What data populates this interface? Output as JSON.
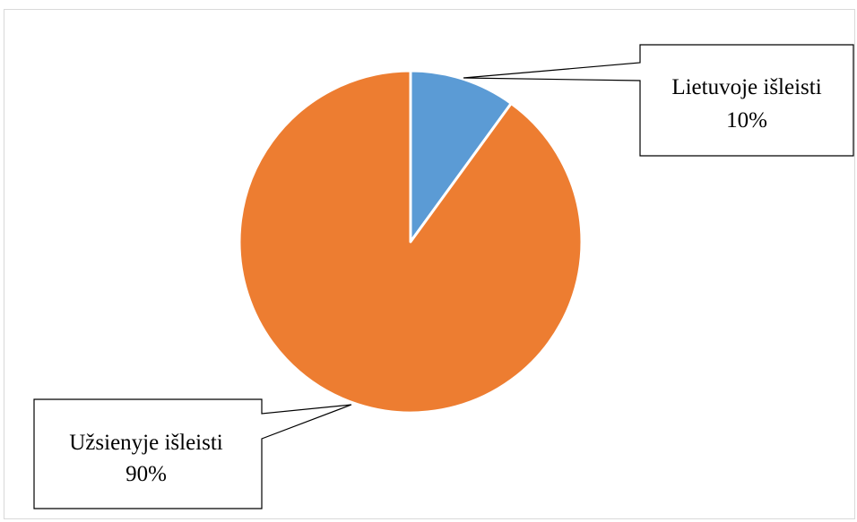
{
  "chart_data": {
    "type": "pie",
    "title": "",
    "slices": [
      {
        "label": "Lietuvoje išleisti",
        "value": 10,
        "value_label": "10%",
        "color": "#5b9bd5"
      },
      {
        "label": "Užsienyje išleisti",
        "value": 90,
        "value_label": "90%",
        "color": "#ed7d31"
      }
    ],
    "start_angle": "12 o'clock",
    "direction": "clockwise",
    "labels": "callouts with leader lines",
    "legend": "none"
  }
}
